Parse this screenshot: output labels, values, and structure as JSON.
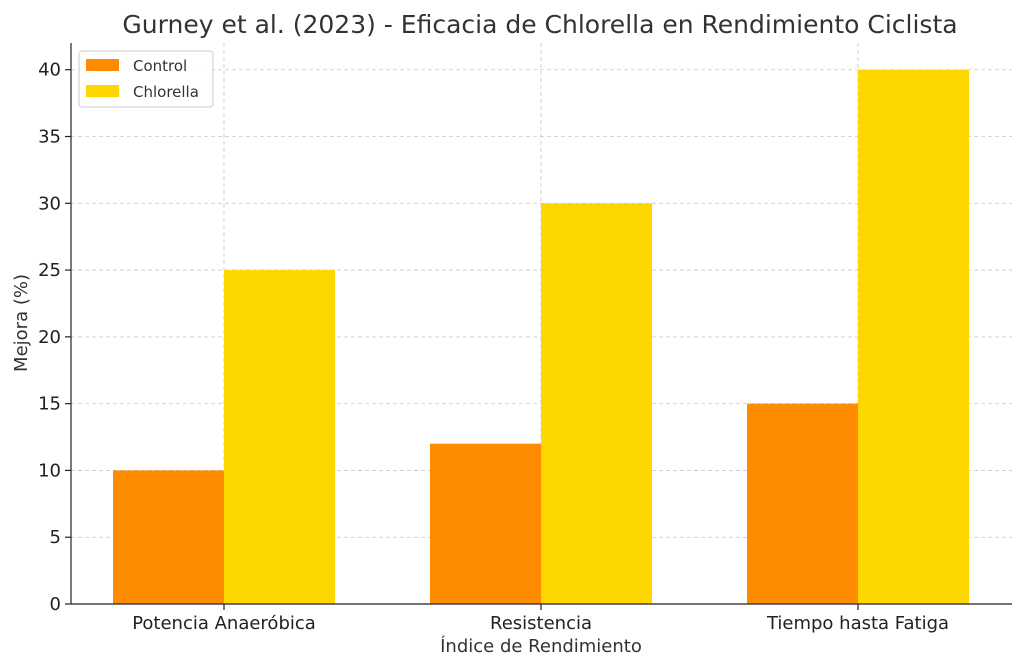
{
  "chart_data": {
    "type": "bar",
    "title": "Gurney et al. (2023) - Eficacia de Chlorella en Rendimiento Ciclista",
    "xlabel": "Índice de Rendimiento",
    "ylabel": "Mejora (%)",
    "categories": [
      "Potencia Anaeróbica",
      "Resistencia",
      "Tiempo hasta Fatiga"
    ],
    "series": [
      {
        "name": "Control",
        "values": [
          10,
          12,
          15
        ],
        "color": "#FF8C00"
      },
      {
        "name": "Chlorella",
        "values": [
          25,
          30,
          40
        ],
        "color": "#FFD700"
      }
    ],
    "ylim": [
      0,
      42
    ],
    "yticks": [
      0,
      5,
      10,
      15,
      20,
      25,
      30,
      35,
      40
    ],
    "grid": true,
    "legend_position": "top-left"
  }
}
